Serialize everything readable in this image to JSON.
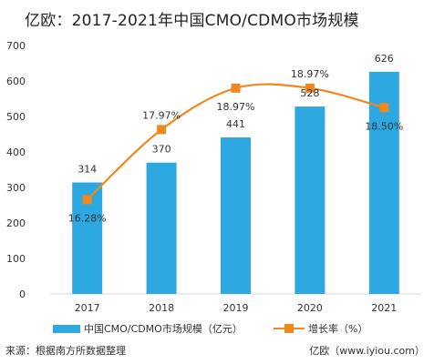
{
  "title": "亿欧：2017-2021年中国CMO/CDMO市场规模",
  "colors": {
    "bar": "#2ea8e0",
    "line": "#f0881e",
    "axis_text": "#333333",
    "grid": "#d9d9d9"
  },
  "legend": {
    "bar_label": "中国CMO/CDMO市场规模（亿元）",
    "line_label": "增长率（%）"
  },
  "footer": {
    "source": "来源：根据南方所数据整理",
    "brand": "亿欧（www.iyiou.com）"
  },
  "chart_data": {
    "type": "bar",
    "categories": [
      "2017",
      "2018",
      "2019",
      "2020",
      "2021"
    ],
    "series": [
      {
        "name": "中国CMO/CDMO市场规模（亿元）",
        "type": "bar",
        "values": [
          314,
          370,
          441,
          528,
          626
        ],
        "labels": [
          "314",
          "370",
          "441",
          "528",
          "626"
        ]
      },
      {
        "name": "增长率（%）",
        "type": "line",
        "smooth": true,
        "values": [
          16.28,
          17.97,
          18.97,
          18.97,
          18.5
        ],
        "labels": [
          "16.28%",
          "17.97%",
          "18.97%",
          "18.97%",
          "18.50%"
        ]
      }
    ],
    "ylim": [
      0,
      700
    ],
    "yticks": [
      "0",
      "100",
      "200",
      "300",
      "400",
      "500",
      "600",
      "700"
    ],
    "line_scale_note": "growth rate drawn on an unlabelled secondary scale",
    "y2lim": [
      14,
      20
    ],
    "grid": false,
    "legend_position": "bottom"
  }
}
